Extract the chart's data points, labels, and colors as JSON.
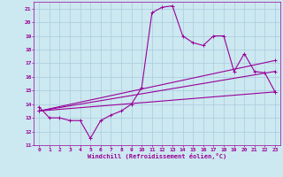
{
  "xlabel": "Windchill (Refroidissement éolien,°C)",
  "bg_color": "#cce8f0",
  "grid_color": "#aaccdd",
  "line_color": "#990099",
  "xlim": [
    -0.5,
    23.5
  ],
  "ylim": [
    11,
    21.5
  ],
  "xticks": [
    0,
    1,
    2,
    3,
    4,
    5,
    6,
    7,
    8,
    9,
    10,
    11,
    12,
    13,
    14,
    15,
    16,
    17,
    18,
    19,
    20,
    21,
    22,
    23
  ],
  "yticks": [
    11,
    12,
    13,
    14,
    15,
    16,
    17,
    18,
    19,
    20,
    21
  ],
  "series1_x": [
    0,
    1,
    2,
    3,
    4,
    5,
    6,
    7,
    8,
    9,
    10,
    11,
    12,
    13,
    14,
    15,
    16,
    17,
    18,
    19,
    20,
    21,
    22,
    23
  ],
  "series1_y": [
    13.8,
    13.0,
    13.0,
    12.8,
    12.8,
    11.5,
    12.8,
    13.2,
    13.5,
    14.0,
    15.2,
    20.7,
    21.1,
    21.2,
    19.0,
    18.5,
    18.3,
    19.0,
    19.0,
    16.4,
    17.7,
    16.4,
    16.3,
    14.9
  ],
  "series2_x": [
    0,
    23
  ],
  "series2_y": [
    13.5,
    17.2
  ],
  "series3_x": [
    0,
    23
  ],
  "series3_y": [
    13.5,
    16.4
  ],
  "series4_x": [
    0,
    23
  ],
  "series4_y": [
    13.5,
    14.9
  ]
}
